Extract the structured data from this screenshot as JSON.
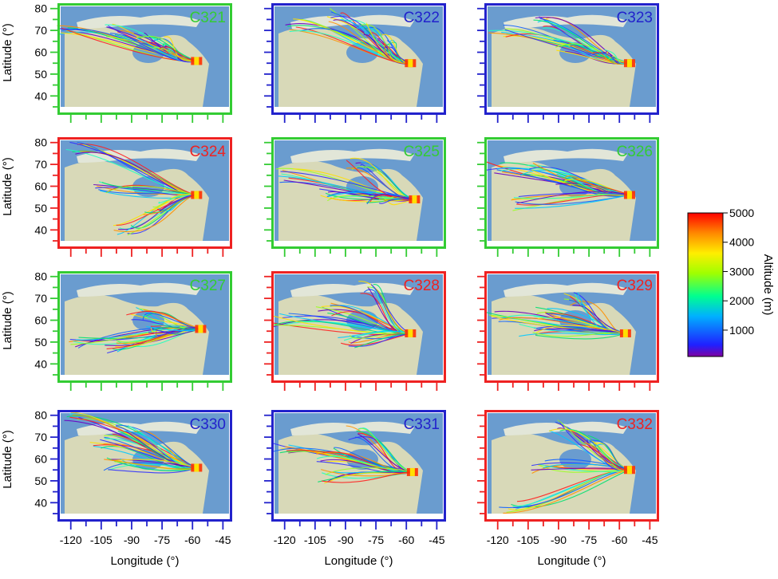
{
  "figure": {
    "ylabel": "Latitude (°)",
    "xlabel": "Longitude (°)",
    "colorbar": {
      "label": "Altitude (m)",
      "ticks": [
        "1000",
        "2000",
        "3000",
        "4000",
        "5000"
      ]
    },
    "category_colors": {
      "green": "#33cc33",
      "blue": "#2222cc",
      "red": "#ee2222"
    }
  },
  "chart_data": [
    {
      "type": "line",
      "title": "C321",
      "category": "green",
      "x_ticks": [
        "-120",
        "-105",
        "-90",
        "-75",
        "-60",
        "-45"
      ],
      "y_ticks": [
        "40",
        "50",
        "60",
        "70",
        "80"
      ],
      "xlim": [
        -125,
        -42
      ],
      "ylim": [
        35,
        81
      ],
      "endpoint": {
        "lon": -58,
        "lat": 56
      },
      "flows": [
        [
          -125,
          69
        ],
        [
          -100,
          70
        ],
        [
          -85,
          66
        ],
        [
          -75,
          64
        ]
      ]
    },
    {
      "type": "line",
      "title": "C322",
      "category": "blue",
      "x_ticks": [
        "-120",
        "-105",
        "-90",
        "-75",
        "-60",
        "-45"
      ],
      "y_ticks": [
        "40",
        "50",
        "60",
        "70",
        "80"
      ],
      "xlim": [
        -125,
        -42
      ],
      "ylim": [
        35,
        81
      ],
      "endpoint": {
        "lon": -58,
        "lat": 55
      },
      "flows": [
        [
          -115,
          72
        ],
        [
          -95,
          77
        ],
        [
          -80,
          70
        ],
        [
          -70,
          65
        ]
      ]
    },
    {
      "type": "line",
      "title": "C323",
      "category": "blue",
      "x_ticks": [
        "-120",
        "-105",
        "-90",
        "-75",
        "-60",
        "-45"
      ],
      "y_ticks": [
        "40",
        "50",
        "60",
        "70",
        "80"
      ],
      "xlim": [
        -125,
        -42
      ],
      "ylim": [
        35,
        81
      ],
      "endpoint": {
        "lon": -55,
        "lat": 55
      },
      "flows": [
        [
          -120,
          70
        ],
        [
          -100,
          74
        ],
        [
          -88,
          63
        ],
        [
          -70,
          58
        ]
      ]
    },
    {
      "type": "line",
      "title": "C324",
      "category": "red",
      "x_ticks": [
        "-120",
        "-105",
        "-90",
        "-75",
        "-60",
        "-45"
      ],
      "y_ticks": [
        "40",
        "50",
        "60",
        "70",
        "80"
      ],
      "xlim": [
        -125,
        -42
      ],
      "ylim": [
        35,
        81
      ],
      "endpoint": {
        "lon": -58,
        "lat": 56
      },
      "flows": [
        [
          -118,
          78
        ],
        [
          -105,
          60
        ],
        [
          -95,
          40
        ],
        [
          -80,
          50
        ]
      ]
    },
    {
      "type": "line",
      "title": "C325",
      "category": "green",
      "x_ticks": [
        "-120",
        "-105",
        "-90",
        "-75",
        "-60",
        "-45"
      ],
      "y_ticks": [
        "40",
        "50",
        "60",
        "70",
        "80"
      ],
      "xlim": [
        -125,
        -42
      ],
      "ylim": [
        35,
        81
      ],
      "endpoint": {
        "lon": -56,
        "lat": 54
      },
      "flows": [
        [
          -120,
          65
        ],
        [
          -100,
          56
        ],
        [
          -85,
          70
        ],
        [
          -75,
          54
        ]
      ]
    },
    {
      "type": "line",
      "title": "C326",
      "category": "green",
      "x_ticks": [
        "-120",
        "-105",
        "-90",
        "-75",
        "-60",
        "-45"
      ],
      "y_ticks": [
        "40",
        "50",
        "60",
        "70",
        "80"
      ],
      "xlim": [
        -125,
        -42
      ],
      "ylim": [
        35,
        81
      ],
      "endpoint": {
        "lon": -55,
        "lat": 56
      },
      "flows": [
        [
          -122,
          68
        ],
        [
          -105,
          68
        ],
        [
          -88,
          63
        ],
        [
          -110,
          52
        ]
      ]
    },
    {
      "type": "line",
      "title": "C327",
      "category": "green",
      "x_ticks": [
        "-120",
        "-105",
        "-90",
        "-75",
        "-60",
        "-45"
      ],
      "y_ticks": [
        "40",
        "50",
        "60",
        "70",
        "80"
      ],
      "xlim": [
        -125,
        -42
      ],
      "ylim": [
        35,
        81
      ],
      "endpoint": {
        "lon": -56,
        "lat": 56
      },
      "flows": [
        [
          -120,
          50
        ],
        [
          -100,
          48
        ],
        [
          -88,
          63
        ],
        [
          -80,
          55
        ]
      ]
    },
    {
      "type": "line",
      "title": "C328",
      "category": "red",
      "x_ticks": [
        "-120",
        "-105",
        "-90",
        "-75",
        "-60",
        "-45"
      ],
      "y_ticks": [
        "40",
        "50",
        "60",
        "70",
        "80"
      ],
      "xlim": [
        -125,
        -42
      ],
      "ylim": [
        35,
        81
      ],
      "endpoint": {
        "lon": -58,
        "lat": 54
      },
      "flows": [
        [
          -122,
          60
        ],
        [
          -100,
          65
        ],
        [
          -80,
          75
        ],
        [
          -90,
          50
        ]
      ]
    },
    {
      "type": "line",
      "title": "C329",
      "category": "red",
      "x_ticks": [
        "-120",
        "-105",
        "-90",
        "-75",
        "-60",
        "-45"
      ],
      "y_ticks": [
        "40",
        "50",
        "60",
        "70",
        "80"
      ],
      "xlim": [
        -125,
        -42
      ],
      "ylim": [
        35,
        81
      ],
      "endpoint": {
        "lon": -57,
        "lat": 54
      },
      "flows": [
        [
          -122,
          62
        ],
        [
          -100,
          64
        ],
        [
          -85,
          70
        ],
        [
          -105,
          55
        ]
      ]
    },
    {
      "type": "line",
      "title": "C330",
      "category": "blue",
      "x_ticks": [
        "-120",
        "-105",
        "-90",
        "-75",
        "-60",
        "-45"
      ],
      "y_ticks": [
        "40",
        "50",
        "60",
        "70",
        "80"
      ],
      "xlim": [
        -125,
        -42
      ],
      "ylim": [
        35,
        81
      ],
      "endpoint": {
        "lon": -58,
        "lat": 56
      },
      "flows": [
        [
          -120,
          78
        ],
        [
          -108,
          68
        ],
        [
          -95,
          74
        ],
        [
          -100,
          58
        ]
      ]
    },
    {
      "type": "line",
      "title": "C331",
      "category": "blue",
      "x_ticks": [
        "-120",
        "-105",
        "-90",
        "-75",
        "-60",
        "-45"
      ],
      "y_ticks": [
        "40",
        "50",
        "60",
        "70",
        "80"
      ],
      "xlim": [
        -125,
        -42
      ],
      "ylim": [
        35,
        81
      ],
      "endpoint": {
        "lon": -57,
        "lat": 54
      },
      "flows": [
        [
          -122,
          66
        ],
        [
          -100,
          62
        ],
        [
          -85,
          72
        ],
        [
          -100,
          52
        ]
      ]
    },
    {
      "type": "line",
      "title": "C332",
      "category": "red",
      "x_ticks": [
        "-120",
        "-105",
        "-90",
        "-75",
        "-60",
        "-45"
      ],
      "y_ticks": [
        "40",
        "50",
        "60",
        "70",
        "80"
      ],
      "xlim": [
        -125,
        -42
      ],
      "ylim": [
        35,
        81
      ],
      "endpoint": {
        "lon": -55,
        "lat": 55
      },
      "flows": [
        [
          -115,
          38
        ],
        [
          -100,
          56
        ],
        [
          -90,
          75
        ],
        [
          -75,
          68
        ]
      ]
    }
  ]
}
